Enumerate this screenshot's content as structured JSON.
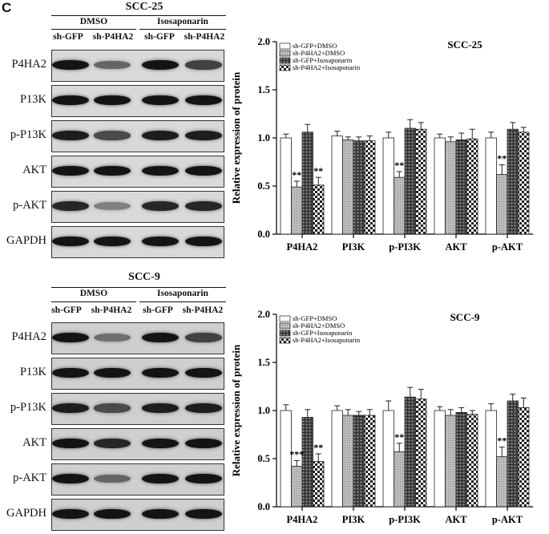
{
  "panel_letter": "C",
  "blots": [
    {
      "title": "SCC-25",
      "groups": [
        "DMSO",
        "Isosaponarin"
      ],
      "lanes": [
        "sh-GFP",
        "sh-P4HA2",
        "sh-GFP",
        "sh-P4HA2"
      ],
      "rows": [
        {
          "label": "P4HA2",
          "intensity": [
            1.0,
            0.55,
            1.0,
            0.75
          ]
        },
        {
          "label": "P13K",
          "intensity": [
            1.0,
            1.0,
            1.0,
            1.0
          ]
        },
        {
          "label": "p-P13K",
          "intensity": [
            0.95,
            0.7,
            0.95,
            0.95
          ]
        },
        {
          "label": "AKT",
          "intensity": [
            1.0,
            1.0,
            1.0,
            1.0
          ]
        },
        {
          "label": "p-AKT",
          "intensity": [
            0.9,
            0.4,
            0.9,
            0.9
          ]
        },
        {
          "label": "GAPDH",
          "intensity": [
            1.0,
            1.0,
            1.0,
            1.0
          ]
        }
      ]
    },
    {
      "title": "SCC-9",
      "groups": [
        "DMSO",
        "Isosaponarin"
      ],
      "lanes": [
        "sh-GFP",
        "sh-P4HA2",
        "sh-GFP",
        "sh-P4HA2"
      ],
      "rows": [
        {
          "label": "P4HA2",
          "intensity": [
            1.0,
            0.5,
            1.0,
            0.75
          ]
        },
        {
          "label": "P13K",
          "intensity": [
            1.0,
            1.0,
            1.0,
            1.0
          ]
        },
        {
          "label": "p-P13K",
          "intensity": [
            0.95,
            0.7,
            0.95,
            0.95
          ]
        },
        {
          "label": "AKT",
          "intensity": [
            1.0,
            0.9,
            1.0,
            1.0
          ]
        },
        {
          "label": "p-AKT",
          "intensity": [
            1.0,
            0.55,
            1.0,
            1.0
          ]
        },
        {
          "label": "GAPDH",
          "intensity": [
            1.0,
            1.0,
            1.0,
            1.0
          ]
        }
      ]
    }
  ],
  "chart_data": [
    {
      "type": "bar",
      "title": "SCC-25",
      "ylabel": "Relative expression of  protein",
      "xlabel": "",
      "ylim": [
        0,
        2.0
      ],
      "yticks": [
        "0.0",
        "0.5",
        "1.0",
        "1.5",
        "2.0"
      ],
      "categories": [
        "P4HA2",
        "PI3K",
        "p-PI3K",
        "AKT",
        "p-AKT"
      ],
      "series": [
        {
          "name": "sh-GFP+DMSO",
          "values": [
            1.0,
            1.02,
            1.0,
            1.0,
            1.0
          ],
          "errors": [
            0.04,
            0.05,
            0.06,
            0.04,
            0.06
          ]
        },
        {
          "name": "sh-P4HA2+DMSO",
          "values": [
            0.49,
            0.98,
            0.59,
            0.96,
            0.62
          ],
          "errors": [
            0.06,
            0.03,
            0.06,
            0.05,
            0.1
          ]
        },
        {
          "name": "sh-GFP+Isosaponarin",
          "values": [
            1.06,
            0.97,
            1.1,
            0.98,
            1.09
          ],
          "errors": [
            0.08,
            0.04,
            0.09,
            0.07,
            0.07
          ]
        },
        {
          "name": "sh-P4HA2+Isosaponarin",
          "values": [
            0.51,
            0.97,
            1.09,
            0.99,
            1.06
          ],
          "errors": [
            0.08,
            0.05,
            0.07,
            0.1,
            0.05
          ]
        }
      ],
      "annotations": [
        {
          "category": "P4HA2",
          "series": 1,
          "text": "**"
        },
        {
          "category": "P4HA2",
          "series": 3,
          "text": "**"
        },
        {
          "category": "p-PI3K",
          "series": 1,
          "text": "**"
        },
        {
          "category": "p-AKT",
          "series": 1,
          "text": "**"
        }
      ],
      "legend": "top-left"
    },
    {
      "type": "bar",
      "title": "SCC-9",
      "ylabel": "Relative expression of  protein",
      "xlabel": "",
      "ylim": [
        0,
        2.0
      ],
      "yticks": [
        "0.0",
        "0.5",
        "1.0",
        "1.5",
        "2.0"
      ],
      "categories": [
        "P4HA2",
        "PI3K",
        "p-PI3K",
        "AKT",
        "p-AKT"
      ],
      "series": [
        {
          "name": "sh-GFP+DMSO",
          "values": [
            1.0,
            1.0,
            1.0,
            1.0,
            1.0
          ],
          "errors": [
            0.06,
            0.05,
            0.1,
            0.04,
            0.07
          ]
        },
        {
          "name": "sh-P4HA2+DMSO",
          "values": [
            0.42,
            0.95,
            0.57,
            0.95,
            0.52
          ],
          "errors": [
            0.06,
            0.06,
            0.09,
            0.06,
            0.1
          ]
        },
        {
          "name": "sh-GFP+Isosaponarin",
          "values": [
            0.93,
            0.95,
            1.14,
            0.98,
            1.1
          ],
          "errors": [
            0.08,
            0.04,
            0.1,
            0.05,
            0.07
          ]
        },
        {
          "name": "sh-P4HA2+Isosaponarin",
          "values": [
            0.47,
            0.95,
            1.12,
            0.96,
            1.03
          ],
          "errors": [
            0.08,
            0.06,
            0.1,
            0.04,
            0.1
          ]
        }
      ],
      "annotations": [
        {
          "category": "P4HA2",
          "series": 1,
          "text": "***"
        },
        {
          "category": "P4HA2",
          "series": 3,
          "text": "**"
        },
        {
          "category": "p-PI3K",
          "series": 1,
          "text": "**"
        },
        {
          "category": "p-AKT",
          "series": 1,
          "text": "**"
        }
      ],
      "legend": "top-left"
    }
  ]
}
